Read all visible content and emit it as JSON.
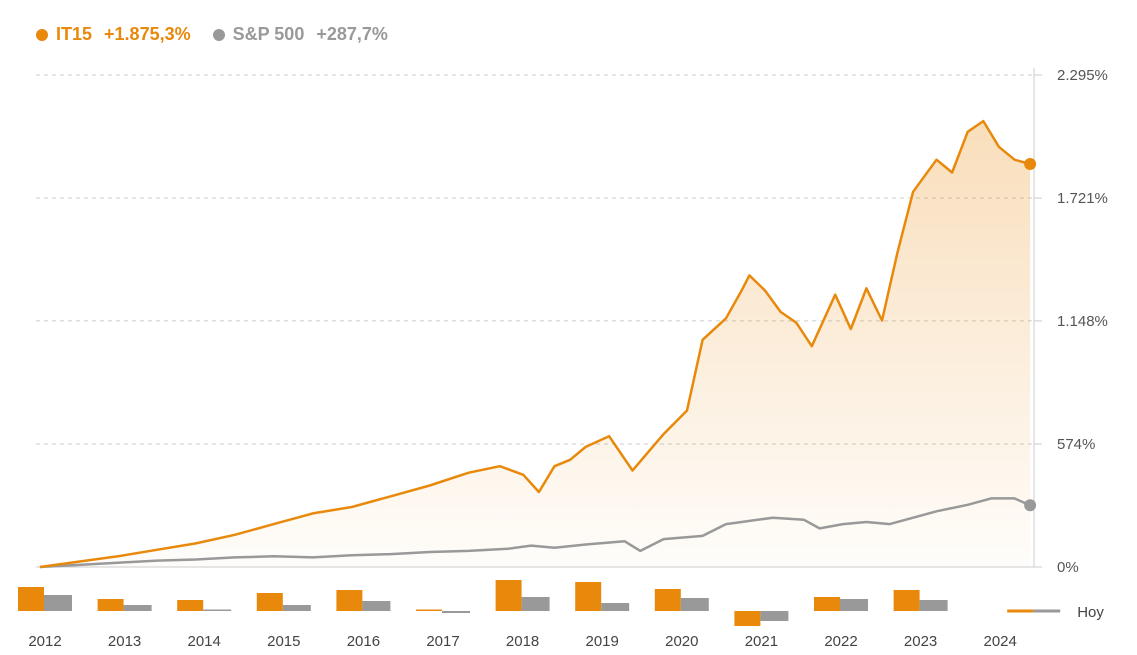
{
  "legend": {
    "series1": {
      "name": "IT15",
      "value": "+1.875,3%"
    },
    "series2": {
      "name": "S&P 500",
      "value": "+287,7%"
    }
  },
  "colors": {
    "series1": "#e8890c",
    "series2": "#999999",
    "grid": "#cccccc"
  },
  "chart_data": [
    {
      "type": "area",
      "ylim": [
        0,
        2295
      ],
      "ytick_labels": [
        "2.295%",
        "1.721%",
        "1.148%",
        "574%",
        "0%"
      ],
      "ytick_values": [
        2295,
        1721,
        1148,
        574,
        0
      ],
      "series": [
        {
          "name": "IT15",
          "x": [
            2012.0,
            2012.5,
            2013.0,
            2013.5,
            2014.0,
            2014.5,
            2015.0,
            2015.5,
            2016.0,
            2016.5,
            2017.0,
            2017.5,
            2017.9,
            2018.2,
            2018.4,
            2018.6,
            2018.8,
            2019.0,
            2019.3,
            2019.6,
            2020.0,
            2020.3,
            2020.5,
            2020.8,
            2021.0,
            2021.1,
            2021.3,
            2021.5,
            2021.7,
            2021.9,
            2022.2,
            2022.4,
            2022.6,
            2022.8,
            2023.0,
            2023.2,
            2023.5,
            2023.7,
            2023.9,
            2024.1,
            2024.3,
            2024.5,
            2024.7
          ],
          "values": [
            0,
            25,
            50,
            80,
            110,
            150,
            200,
            250,
            280,
            330,
            380,
            440,
            470,
            430,
            350,
            470,
            500,
            560,
            610,
            450,
            620,
            730,
            1060,
            1160,
            1290,
            1360,
            1290,
            1190,
            1140,
            1030,
            1270,
            1110,
            1300,
            1150,
            1470,
            1750,
            1900,
            1840,
            2030,
            2080,
            1960,
            1900,
            1880
          ]
        },
        {
          "name": "S&P 500",
          "x": [
            2012.0,
            2012.5,
            2013.0,
            2013.5,
            2014.0,
            2014.5,
            2015.0,
            2015.5,
            2016.0,
            2016.5,
            2017.0,
            2017.5,
            2018.0,
            2018.3,
            2018.6,
            2019.0,
            2019.5,
            2019.7,
            2020.0,
            2020.5,
            2020.8,
            2021.0,
            2021.4,
            2021.8,
            2022.0,
            2022.3,
            2022.6,
            2022.9,
            2023.2,
            2023.5,
            2023.9,
            2024.2,
            2024.5,
            2024.7
          ],
          "values": [
            0,
            10,
            20,
            30,
            35,
            45,
            50,
            45,
            55,
            60,
            70,
            75,
            85,
            100,
            90,
            105,
            120,
            75,
            130,
            145,
            200,
            210,
            230,
            220,
            180,
            200,
            210,
            200,
            230,
            260,
            290,
            320,
            320,
            288
          ]
        }
      ]
    },
    {
      "type": "bar",
      "categories": [
        "2012",
        "2013",
        "2014",
        "2015",
        "2016",
        "2017",
        "2018",
        "2019",
        "2020",
        "2021",
        "2022",
        "2023",
        "2024"
      ],
      "extra_label": "Hoy",
      "series": [
        {
          "name": "IT15",
          "values": [
            24,
            12,
            11,
            18,
            21,
            1,
            31,
            29,
            22,
            -15,
            14,
            21,
            2
          ]
        },
        {
          "name": "S&P 500",
          "values": [
            16,
            6,
            1,
            6,
            10,
            -2,
            14,
            8,
            13,
            -10,
            12,
            11,
            2
          ]
        }
      ]
    }
  ]
}
